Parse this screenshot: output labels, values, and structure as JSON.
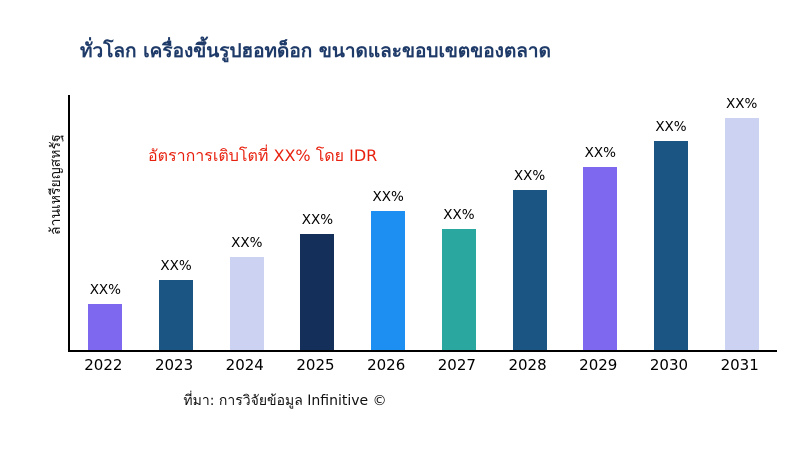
{
  "title": "ทั่วโลก เครื่องขึ้นรูปฮอทด็อก ขนาดและขอบเขตของตลาด",
  "annotation": "อัตราการเติบโตที่ XX% โดย IDR",
  "source": "ที่มา: การวิจัยข้อมูล Infinitive ©",
  "chart_data": {
    "type": "bar",
    "title": "ทั่วโลก เครื่องขึ้นรูปฮอทด็อก ขนาดและขอบเขตของตลาด",
    "xlabel": "",
    "ylabel": "ล้านเหรียญสหรัฐ",
    "categories": [
      "2022",
      "2023",
      "2024",
      "2025",
      "2026",
      "2027",
      "2028",
      "2029",
      "2030",
      "2031"
    ],
    "values": [
      20,
      30,
      40,
      50,
      60,
      52,
      69,
      79,
      90,
      100
    ],
    "values_note": "relative bar heights estimated from pixels; no numeric axis ticks shown",
    "bar_labels": [
      "XX%",
      "XX%",
      "XX%",
      "XX%",
      "XX%",
      "XX%",
      "XX%",
      "XX%",
      "XX%",
      "XX%"
    ],
    "bar_colors": [
      "#7d68ef",
      "#1b5583",
      "#ccd2f2",
      "#14305a",
      "#1e8ff2",
      "#2aa79f",
      "#1b5583",
      "#7d68ef",
      "#1b5583",
      "#ccd2f2"
    ],
    "ylim": [
      0,
      110
    ],
    "grid": false,
    "legend": false,
    "annotation": "อัตราการเติบโตที่ XX% โดย IDR",
    "annotation_color": "#e8210f",
    "title_color": "#1e3a68"
  }
}
